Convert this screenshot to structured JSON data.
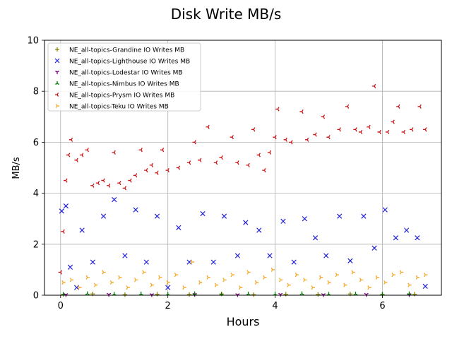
{
  "chart_data": {
    "type": "scatter",
    "title": "Disk Write MB/s",
    "xlabel": "Hours",
    "ylabel": "MB/s",
    "xlim": [
      -0.3,
      7.1
    ],
    "ylim": [
      0,
      10
    ],
    "xticks": [
      0,
      2,
      4,
      6
    ],
    "yticks": [
      0,
      2,
      4,
      6,
      8,
      10
    ],
    "grid": true,
    "legend_position": "top-left",
    "series": [
      {
        "name": "NE_all-topics-Grandine IO Writes MB",
        "color": "#808000",
        "marker": "plus",
        "points": [
          [
            0.05,
            0.03
          ],
          [
            0.6,
            0.05
          ],
          [
            1.2,
            0.02
          ],
          [
            1.8,
            0.04
          ],
          [
            2.4,
            0.03
          ],
          [
            3.0,
            0.05
          ],
          [
            3.6,
            0.02
          ],
          [
            4.2,
            0.04
          ],
          [
            4.8,
            0.03
          ],
          [
            5.4,
            0.05
          ],
          [
            6.0,
            0.03
          ],
          [
            6.6,
            0.04
          ]
        ]
      },
      {
        "name": "NE_all-topics-Lighthouse IO Writes MB",
        "color": "#1f1fdc",
        "marker": "x",
        "points": [
          [
            0.02,
            3.3
          ],
          [
            0.1,
            3.5
          ],
          [
            0.18,
            1.1
          ],
          [
            0.3,
            0.3
          ],
          [
            0.4,
            2.55
          ],
          [
            0.6,
            1.3
          ],
          [
            0.8,
            3.1
          ],
          [
            1.0,
            3.75
          ],
          [
            1.2,
            1.55
          ],
          [
            1.4,
            3.35
          ],
          [
            1.6,
            1.3
          ],
          [
            1.8,
            3.1
          ],
          [
            2.0,
            0.3
          ],
          [
            2.2,
            2.65
          ],
          [
            2.4,
            1.3
          ],
          [
            2.65,
            3.2
          ],
          [
            2.85,
            1.3
          ],
          [
            3.05,
            3.1
          ],
          [
            3.3,
            1.55
          ],
          [
            3.45,
            2.85
          ],
          [
            3.7,
            2.55
          ],
          [
            3.9,
            1.55
          ],
          [
            4.15,
            2.9
          ],
          [
            4.35,
            1.3
          ],
          [
            4.55,
            3.0
          ],
          [
            4.75,
            2.25
          ],
          [
            4.95,
            1.55
          ],
          [
            5.2,
            3.1
          ],
          [
            5.4,
            1.35
          ],
          [
            5.65,
            3.1
          ],
          [
            5.85,
            1.85
          ],
          [
            6.05,
            3.35
          ],
          [
            6.25,
            2.25
          ],
          [
            6.45,
            2.55
          ],
          [
            6.65,
            2.25
          ],
          [
            6.8,
            0.35
          ]
        ]
      },
      {
        "name": "NE_all-topics-Lodestar IO Writes MB",
        "color": "#800080",
        "marker": "tri_down",
        "points": [
          [
            0.1,
            0.02
          ],
          [
            0.9,
            0.03
          ],
          [
            1.7,
            0.02
          ],
          [
            2.5,
            0.03
          ],
          [
            3.3,
            0.02
          ],
          [
            4.1,
            0.03
          ],
          [
            4.9,
            0.02
          ],
          [
            5.7,
            0.03
          ],
          [
            6.5,
            0.02
          ]
        ]
      },
      {
        "name": "NE_all-topics-Nimbus IO Writes MB",
        "color": "#008000",
        "marker": "tri_up",
        "points": [
          [
            0.05,
            0.04
          ],
          [
            0.5,
            0.06
          ],
          [
            1.0,
            0.04
          ],
          [
            1.5,
            0.05
          ],
          [
            2.0,
            0.04
          ],
          [
            2.5,
            0.06
          ],
          [
            3.0,
            0.04
          ],
          [
            3.5,
            0.05
          ],
          [
            4.0,
            0.04
          ],
          [
            4.5,
            0.06
          ],
          [
            5.0,
            0.04
          ],
          [
            5.5,
            0.05
          ],
          [
            6.0,
            0.04
          ],
          [
            6.5,
            0.06
          ]
        ]
      },
      {
        "name": "NE_all-topics-Prysm IO Writes MB",
        "color": "#cc1010",
        "marker": "tri_left",
        "points": [
          [
            0.0,
            0.9
          ],
          [
            0.05,
            2.5
          ],
          [
            0.1,
            4.5
          ],
          [
            0.15,
            5.5
          ],
          [
            0.2,
            6.1
          ],
          [
            0.3,
            5.3
          ],
          [
            0.4,
            5.5
          ],
          [
            0.5,
            5.7
          ],
          [
            0.6,
            4.3
          ],
          [
            0.7,
            4.4
          ],
          [
            0.8,
            4.5
          ],
          [
            0.9,
            4.3
          ],
          [
            1.0,
            5.6
          ],
          [
            1.1,
            4.4
          ],
          [
            1.2,
            4.2
          ],
          [
            1.3,
            4.5
          ],
          [
            1.4,
            4.7
          ],
          [
            1.5,
            5.7
          ],
          [
            1.6,
            4.9
          ],
          [
            1.7,
            5.1
          ],
          [
            1.8,
            4.8
          ],
          [
            1.9,
            5.7
          ],
          [
            2.0,
            4.9
          ],
          [
            2.2,
            5.0
          ],
          [
            2.4,
            5.2
          ],
          [
            2.5,
            6.0
          ],
          [
            2.6,
            5.3
          ],
          [
            2.75,
            6.6
          ],
          [
            2.9,
            5.2
          ],
          [
            3.0,
            5.4
          ],
          [
            3.2,
            6.2
          ],
          [
            3.3,
            5.2
          ],
          [
            3.5,
            5.1
          ],
          [
            3.6,
            6.5
          ],
          [
            3.7,
            5.5
          ],
          [
            3.8,
            4.9
          ],
          [
            3.9,
            5.6
          ],
          [
            4.0,
            6.2
          ],
          [
            4.05,
            7.3
          ],
          [
            4.2,
            6.1
          ],
          [
            4.3,
            6.0
          ],
          [
            4.5,
            7.2
          ],
          [
            4.6,
            6.1
          ],
          [
            4.75,
            6.3
          ],
          [
            4.9,
            7.0
          ],
          [
            5.0,
            6.2
          ],
          [
            5.2,
            6.5
          ],
          [
            5.35,
            7.4
          ],
          [
            5.5,
            6.5
          ],
          [
            5.6,
            6.4
          ],
          [
            5.75,
            6.6
          ],
          [
            5.85,
            8.2
          ],
          [
            5.95,
            6.4
          ],
          [
            6.1,
            6.4
          ],
          [
            6.2,
            6.8
          ],
          [
            6.3,
            7.4
          ],
          [
            6.4,
            6.4
          ],
          [
            6.55,
            6.5
          ],
          [
            6.7,
            7.4
          ],
          [
            6.8,
            6.5
          ]
        ]
      },
      {
        "name": "NE_all-topics-Teku IO Writes MB",
        "color": "#f5a623",
        "marker": "tri_right",
        "points": [
          [
            0.05,
            0.5
          ],
          [
            0.2,
            0.6
          ],
          [
            0.35,
            0.3
          ],
          [
            0.5,
            0.7
          ],
          [
            0.65,
            0.4
          ],
          [
            0.8,
            0.9
          ],
          [
            0.95,
            0.5
          ],
          [
            1.1,
            0.7
          ],
          [
            1.25,
            0.3
          ],
          [
            1.4,
            0.6
          ],
          [
            1.55,
            0.9
          ],
          [
            1.7,
            0.4
          ],
          [
            1.85,
            0.7
          ],
          [
            2.0,
            0.5
          ],
          [
            2.15,
            0.8
          ],
          [
            2.3,
            0.3
          ],
          [
            2.45,
            1.3
          ],
          [
            2.6,
            0.5
          ],
          [
            2.75,
            0.7
          ],
          [
            2.9,
            0.4
          ],
          [
            3.05,
            0.6
          ],
          [
            3.2,
            0.8
          ],
          [
            3.35,
            0.3
          ],
          [
            3.5,
            0.9
          ],
          [
            3.65,
            0.5
          ],
          [
            3.8,
            0.7
          ],
          [
            3.95,
            1.0
          ],
          [
            4.1,
            0.6
          ],
          [
            4.25,
            0.4
          ],
          [
            4.4,
            0.8
          ],
          [
            4.55,
            0.6
          ],
          [
            4.7,
            0.3
          ],
          [
            4.85,
            0.7
          ],
          [
            5.0,
            0.5
          ],
          [
            5.15,
            0.8
          ],
          [
            5.3,
            0.4
          ],
          [
            5.45,
            0.9
          ],
          [
            5.6,
            0.6
          ],
          [
            5.75,
            0.3
          ],
          [
            5.9,
            0.7
          ],
          [
            6.05,
            0.5
          ],
          [
            6.2,
            0.8
          ],
          [
            6.35,
            0.9
          ],
          [
            6.5,
            0.4
          ],
          [
            6.65,
            0.7
          ],
          [
            6.8,
            0.8
          ]
        ]
      }
    ]
  }
}
